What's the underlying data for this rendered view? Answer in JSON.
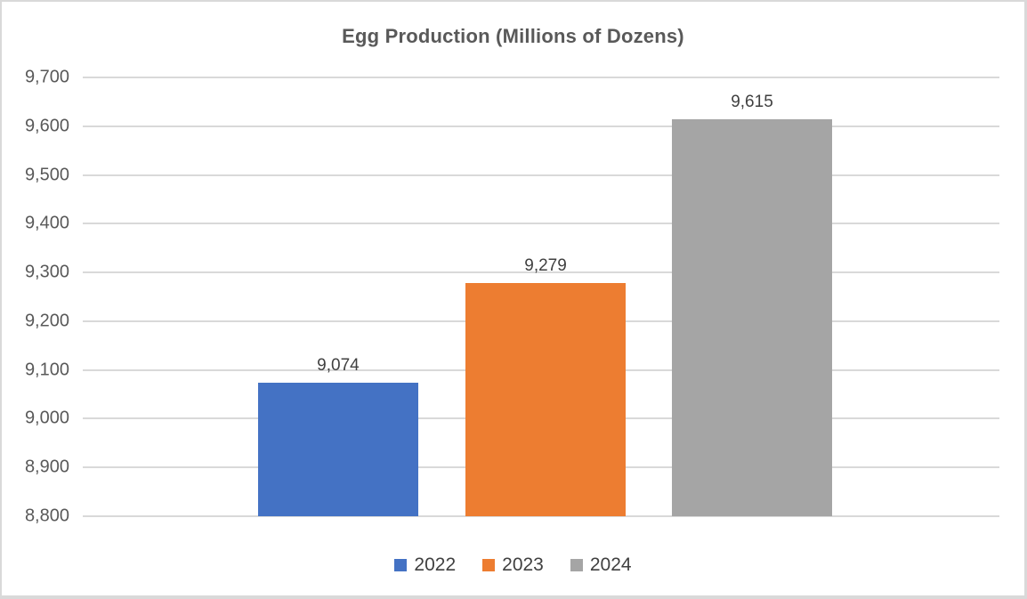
{
  "chart_data": {
    "type": "bar",
    "title": "Egg Production (Millions of Dozens)",
    "categories": [
      "2022",
      "2023",
      "2024"
    ],
    "series": [
      {
        "name": "2022",
        "values": [
          9074
        ],
        "data_labels": [
          "9,074"
        ],
        "color": "#4472C4"
      },
      {
        "name": "2023",
        "values": [
          9279
        ],
        "data_labels": [
          "9,279"
        ],
        "color": "#ED7D31"
      },
      {
        "name": "2024",
        "values": [
          9615
        ],
        "data_labels": [
          "9,615"
        ],
        "color": "#A5A5A5"
      }
    ],
    "xlabel": "",
    "ylabel": "",
    "ylim": [
      8800,
      9700
    ],
    "ytick_values": [
      8800,
      8900,
      9000,
      9100,
      9200,
      9300,
      9400,
      9500,
      9600,
      9700
    ],
    "ytick_labels": [
      "8,800",
      "8,900",
      "9,000",
      "9,100",
      "9,200",
      "9,300",
      "9,400",
      "9,500",
      "9,600",
      "9,700"
    ],
    "grid": true,
    "legend_position": "bottom"
  },
  "colors": {
    "title_text": "#595959",
    "axis_text": "#595959",
    "label_text": "#404040",
    "gridline": "#D9D9D9",
    "frame_border": "#D9D9D9",
    "background": "#FFFFFF"
  }
}
